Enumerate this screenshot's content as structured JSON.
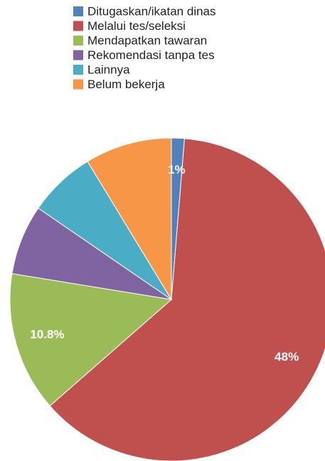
{
  "chart_data": {
    "type": "pie",
    "categories": [
      "Ditugaskan/ikatan dinas",
      "Melalui tes/seleksi",
      "Mendapatkan tawaran",
      "Rekomendasi tanpa tes",
      "Lainnya",
      "Belum bekerja"
    ],
    "values": [
      1,
      48,
      10.8,
      5.4,
      5.2,
      6.7
    ],
    "value_labels": [
      "1%",
      "48%",
      "10.8%",
      null,
      null,
      null
    ],
    "colors": [
      "#4f81bd",
      "#c0504d",
      "#9bbb59",
      "#8064a2",
      "#4bacc6",
      "#f79646"
    ],
    "legend": "top"
  }
}
